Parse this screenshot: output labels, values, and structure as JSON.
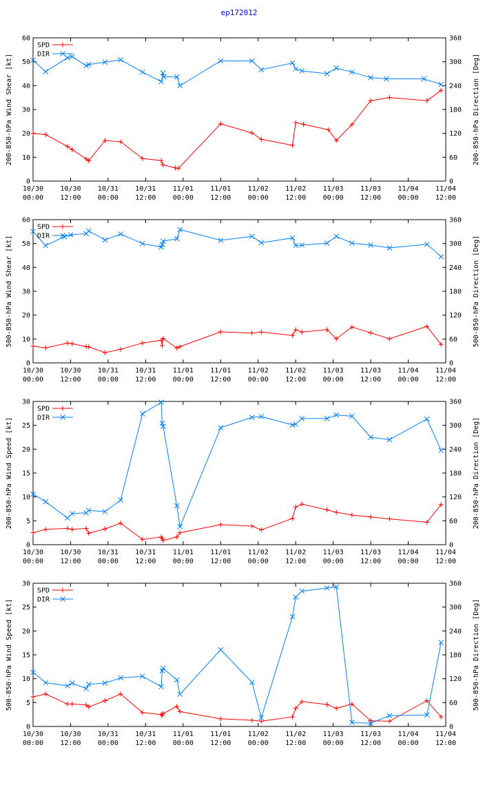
{
  "page": {
    "title": "ep172012"
  },
  "chart_data": [
    {
      "type": "line",
      "ylabel": "200-850-hPa Wind Shear [kt]",
      "y2label": "200-850-hPa Direction [Deg]",
      "ylim": [
        0,
        60
      ],
      "yticks": [
        0,
        10,
        20,
        30,
        40,
        50,
        60
      ],
      "y2lim": [
        0,
        360
      ],
      "y2ticks": [
        0,
        60,
        120,
        180,
        240,
        300,
        360
      ],
      "xlim_hours": [
        0,
        132
      ],
      "xticks": [
        {
          "h": 0,
          "date": "10/30",
          "time": "00:00"
        },
        {
          "h": 12,
          "date": "10/30",
          "time": "12:00"
        },
        {
          "h": 24,
          "date": "10/31",
          "time": "00:00"
        },
        {
          "h": 36,
          "date": "10/31",
          "time": "12:00"
        },
        {
          "h": 48,
          "date": "11/01",
          "time": "00:00"
        },
        {
          "h": 60,
          "date": "11/01",
          "time": "12:00"
        },
        {
          "h": 72,
          "date": "11/02",
          "time": "00:00"
        },
        {
          "h": 84,
          "date": "11/02",
          "time": "12:00"
        },
        {
          "h": 96,
          "date": "11/03",
          "time": "00:00"
        },
        {
          "h": 108,
          "date": "11/03",
          "time": "12:00"
        },
        {
          "h": 120,
          "date": "11/04",
          "time": "00:00"
        },
        {
          "h": 132,
          "date": "11/04",
          "time": "12:00"
        }
      ],
      "legend_position": "top-left",
      "series": [
        {
          "name": "SPD",
          "axis": "left",
          "color": "#ff0000",
          "marker": "plus",
          "x": [
            0,
            4,
            11,
            12.5,
            17,
            17.8,
            23,
            28,
            35,
            41,
            41.5,
            45.5,
            46.5,
            60,
            70,
            73,
            83,
            84,
            86.5,
            94.5,
            97,
            102,
            108,
            114,
            126,
            130.5
          ],
          "y": [
            20,
            19.5,
            14.5,
            13.2,
            9.3,
            8.5,
            17,
            16.5,
            9.5,
            8.6,
            6.8,
            5.5,
            5.3,
            24,
            20.2,
            17.5,
            15,
            24.5,
            23.8,
            21.5,
            17,
            23.7,
            33.7,
            35,
            33.7,
            38
          ]
        },
        {
          "name": "DIR",
          "axis": "right",
          "color": "#0080ff",
          "marker": "cross",
          "x": [
            0,
            4,
            11,
            12.5,
            17,
            17.8,
            23,
            28,
            35,
            41,
            41.5,
            41.8,
            46,
            47,
            60,
            70,
            73,
            83,
            84,
            86,
            94,
            97,
            102,
            108,
            113,
            125,
            130.5
          ],
          "y": [
            304,
            275,
            310,
            313,
            290,
            293,
            299,
            305,
            274,
            250,
            272,
            262,
            262,
            240,
            302,
            302,
            280,
            297,
            282,
            277,
            270,
            284,
            274,
            260,
            257,
            257,
            243
          ]
        }
      ]
    },
    {
      "type": "line",
      "ylabel": "500-850-hPa Wind Shear [kt]",
      "y2label": "500-850-hPa Direction [Deg]",
      "ylim": [
        0,
        60
      ],
      "yticks": [
        0,
        10,
        20,
        30,
        40,
        50,
        60
      ],
      "y2lim": [
        0,
        360
      ],
      "y2ticks": [
        0,
        60,
        120,
        180,
        240,
        300,
        360
      ],
      "xlim_hours": [
        0,
        132
      ],
      "xticks": [
        {
          "h": 0,
          "date": "10/30",
          "time": "00:00"
        },
        {
          "h": 12,
          "date": "10/30",
          "time": "12:00"
        },
        {
          "h": 24,
          "date": "10/31",
          "time": "00:00"
        },
        {
          "h": 36,
          "date": "10/31",
          "time": "12:00"
        },
        {
          "h": 48,
          "date": "11/01",
          "time": "00:00"
        },
        {
          "h": 60,
          "date": "11/01",
          "time": "12:00"
        },
        {
          "h": 72,
          "date": "11/02",
          "time": "00:00"
        },
        {
          "h": 84,
          "date": "11/02",
          "time": "12:00"
        },
        {
          "h": 96,
          "date": "11/03",
          "time": "00:00"
        },
        {
          "h": 108,
          "date": "11/03",
          "time": "12:00"
        },
        {
          "h": 120,
          "date": "11/04",
          "time": "00:00"
        },
        {
          "h": 132,
          "date": "11/04",
          "time": "12:00"
        }
      ],
      "legend_position": "top-left",
      "series": [
        {
          "name": "SPD",
          "axis": "left",
          "color": "#ff0000",
          "marker": "plus",
          "x": [
            0,
            4,
            11,
            12.5,
            17,
            17.8,
            23,
            28,
            35,
            41,
            41.3,
            41.6,
            46,
            47,
            60,
            70,
            73,
            83,
            84,
            86,
            94,
            97,
            102,
            108,
            114,
            126,
            130.5
          ],
          "y": [
            7,
            6.3,
            8.3,
            8,
            6.8,
            6.7,
            4.3,
            5.7,
            8.3,
            9.5,
            7.2,
            10.2,
            6.2,
            6.8,
            13,
            12.5,
            12.9,
            11.5,
            13.9,
            12.9,
            13.9,
            10.1,
            15,
            12.6,
            10.1,
            15.3,
            7.7
          ]
        },
        {
          "name": "DIR",
          "axis": "right",
          "color": "#0080ff",
          "marker": "cross",
          "x": [
            0,
            4,
            10,
            12,
            17,
            17.8,
            23,
            28,
            35,
            41,
            41.3,
            41.6,
            46,
            47,
            60,
            70,
            73,
            83,
            84,
            86,
            94,
            97,
            102,
            108,
            114,
            126,
            130.5
          ],
          "y": [
            330,
            295,
            317,
            322,
            325,
            332,
            309,
            324,
            300,
            291,
            297,
            306,
            312,
            335,
            308,
            318,
            302,
            314,
            295,
            296,
            301,
            318,
            301,
            296,
            289,
            298,
            267
          ]
        }
      ]
    },
    {
      "type": "line",
      "ylabel": "200-850-hPa Wind Speed [kt]",
      "y2label": "200-850-hPa Direction [Deg]",
      "ylim": [
        0,
        30
      ],
      "yticks": [
        0,
        5,
        10,
        15,
        20,
        25,
        30
      ],
      "y2lim": [
        0,
        360
      ],
      "y2ticks": [
        0,
        60,
        120,
        180,
        240,
        300,
        360
      ],
      "xlim_hours": [
        0,
        132
      ],
      "xticks": [
        {
          "h": 0,
          "date": "10/30",
          "time": "00:00"
        },
        {
          "h": 12,
          "date": "10/30",
          "time": "12:00"
        },
        {
          "h": 24,
          "date": "10/31",
          "time": "00:00"
        },
        {
          "h": 36,
          "date": "10/31",
          "time": "12:00"
        },
        {
          "h": 48,
          "date": "11/01",
          "time": "00:00"
        },
        {
          "h": 60,
          "date": "11/01",
          "time": "12:00"
        },
        {
          "h": 72,
          "date": "11/02",
          "time": "00:00"
        },
        {
          "h": 84,
          "date": "11/02",
          "time": "12:00"
        },
        {
          "h": 96,
          "date": "11/03",
          "time": "00:00"
        },
        {
          "h": 108,
          "date": "11/03",
          "time": "12:00"
        },
        {
          "h": 120,
          "date": "11/04",
          "time": "00:00"
        },
        {
          "h": 132,
          "date": "11/04",
          "time": "12:00"
        }
      ],
      "legend_position": "top-left",
      "series": [
        {
          "name": "SPD",
          "axis": "left",
          "color": "#ff0000",
          "marker": "plus",
          "x": [
            0,
            4,
            11,
            12.5,
            17,
            17.8,
            23,
            28,
            35,
            41,
            41.3,
            41.6,
            46,
            47,
            60,
            70,
            73,
            83,
            84,
            86,
            94,
            97,
            102,
            108,
            114,
            126,
            130.5
          ],
          "y": [
            2.5,
            3.2,
            3.4,
            3.2,
            3.4,
            2.4,
            3.3,
            4.5,
            1.1,
            1.6,
            1.3,
            0.9,
            1.6,
            2.5,
            4.2,
            3.9,
            3.1,
            5.5,
            7.9,
            8.5,
            7.3,
            6.8,
            6.2,
            5.8,
            5.4,
            4.7,
            8.4
          ]
        },
        {
          "name": "DIR",
          "axis": "right",
          "color": "#0080ff",
          "marker": "cross",
          "x": [
            0,
            4,
            11,
            12.5,
            17,
            17.8,
            23,
            28,
            35,
            41,
            41.3,
            41.6,
            46,
            47,
            60,
            70,
            73,
            83,
            84,
            86,
            94,
            97,
            102,
            108,
            114,
            126,
            130.5
          ],
          "y": [
            127,
            108,
            67,
            78,
            80,
            86,
            83,
            112,
            329,
            358,
            305,
            297,
            98,
            45,
            294,
            320,
            322,
            301,
            303,
            317,
            317,
            326,
            323,
            270,
            264,
            316,
            237
          ]
        }
      ]
    },
    {
      "type": "line",
      "ylabel": "500-850-hPa Wind Speed [kt]",
      "y2label": "500-850-hPa Direction [Deg]",
      "ylim": [
        0,
        30
      ],
      "yticks": [
        0,
        5,
        10,
        15,
        20,
        25,
        30
      ],
      "y2lim": [
        0,
        360
      ],
      "y2ticks": [
        0,
        60,
        120,
        180,
        240,
        300,
        360
      ],
      "xlim_hours": [
        0,
        132
      ],
      "xticks": [
        {
          "h": 0,
          "date": "10/30",
          "time": "00:00"
        },
        {
          "h": 12,
          "date": "10/30",
          "time": "12:00"
        },
        {
          "h": 24,
          "date": "10/31",
          "time": "00:00"
        },
        {
          "h": 36,
          "date": "10/31",
          "time": "12:00"
        },
        {
          "h": 48,
          "date": "11/01",
          "time": "00:00"
        },
        {
          "h": 60,
          "date": "11/01",
          "time": "12:00"
        },
        {
          "h": 72,
          "date": "11/02",
          "time": "00:00"
        },
        {
          "h": 84,
          "date": "11/02",
          "time": "12:00"
        },
        {
          "h": 96,
          "date": "11/03",
          "time": "00:00"
        },
        {
          "h": 108,
          "date": "11/03",
          "time": "12:00"
        },
        {
          "h": 120,
          "date": "11/04",
          "time": "00:00"
        },
        {
          "h": 132,
          "date": "11/04",
          "time": "12:00"
        }
      ],
      "legend_position": "top-left",
      "series": [
        {
          "name": "SPD",
          "axis": "left",
          "color": "#ff0000",
          "marker": "plus",
          "x": [
            0,
            4,
            11,
            12.5,
            17,
            17.8,
            23,
            28,
            35,
            41,
            41.3,
            41.6,
            46,
            47,
            60,
            70,
            73,
            83,
            84,
            86,
            94,
            97,
            102,
            108,
            114,
            126,
            130.5
          ],
          "y": [
            6.2,
            6.8,
            4.7,
            4.7,
            4.5,
            4.1,
            5.4,
            6.8,
            2.9,
            2.5,
            2.3,
            2.7,
            4.2,
            3.1,
            1.6,
            1.3,
            1.1,
            2,
            3.8,
            5.2,
            4.6,
            3.8,
            4.7,
            1.2,
            1.1,
            5.4,
            2
          ]
        },
        {
          "name": "DIR",
          "axis": "right",
          "color": "#0080ff",
          "marker": "cross",
          "x": [
            0,
            4,
            11,
            12.5,
            17,
            17.8,
            23,
            28,
            35,
            41,
            41.3,
            41.6,
            46,
            47,
            60,
            70,
            73,
            83,
            84,
            86,
            94,
            97,
            102,
            108,
            114,
            126,
            130.5
          ],
          "y": [
            136,
            110,
            102,
            109,
            95,
            106,
            109,
            122,
            126,
            100,
            140,
            146,
            117,
            81,
            193,
            111,
            22,
            276,
            325,
            340,
            348,
            351,
            10,
            8,
            27,
            29,
            211
          ]
        }
      ]
    }
  ]
}
